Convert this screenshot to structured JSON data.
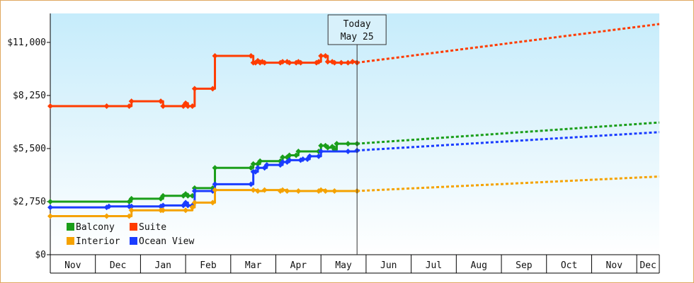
{
  "chart_data": {
    "type": "line",
    "title": "",
    "xlabel": "",
    "ylabel": "",
    "ylim": [
      0,
      12500
    ],
    "yticks": [
      {
        "value": 0,
        "label": "$0"
      },
      {
        "value": 2750,
        "label": "$2,750"
      },
      {
        "value": 5500,
        "label": "$5,500"
      },
      {
        "value": 8250,
        "label": "$8,250"
      },
      {
        "value": 11000,
        "label": "$11,000"
      }
    ],
    "x_axis": {
      "start": 0,
      "end": 13.5,
      "months": [
        "Nov",
        "Dec",
        "Jan",
        "Feb",
        "Mar",
        "Apr",
        "May",
        "Jun",
        "Jul",
        "Aug",
        "Sep",
        "Oct",
        "Nov",
        "Dec"
      ]
    },
    "today_marker": {
      "line1": "Today",
      "line2": "May 25",
      "x": 6.8
    },
    "grid": false,
    "legend_position": "bottom-left",
    "series": [
      {
        "name": "Suite",
        "color": "#ff3c00",
        "points": [
          [
            0.0,
            7700
          ],
          [
            1.25,
            7700
          ],
          [
            1.75,
            7700
          ],
          [
            1.8,
            7950
          ],
          [
            2.45,
            7950
          ],
          [
            2.5,
            7700
          ],
          [
            2.95,
            7700
          ],
          [
            3.0,
            7850
          ],
          [
            3.05,
            7700
          ],
          [
            3.15,
            7700
          ],
          [
            3.2,
            8600
          ],
          [
            3.6,
            8600
          ],
          [
            3.65,
            10300
          ],
          [
            4.45,
            10300
          ],
          [
            4.5,
            9950
          ],
          [
            4.55,
            9950
          ],
          [
            4.6,
            10050
          ],
          [
            4.65,
            9950
          ],
          [
            4.7,
            10000
          ],
          [
            4.75,
            9950
          ],
          [
            5.1,
            9950
          ],
          [
            5.15,
            10000
          ],
          [
            5.25,
            10000
          ],
          [
            5.3,
            9950
          ],
          [
            5.45,
            9950
          ],
          [
            5.5,
            10000
          ],
          [
            5.55,
            9950
          ],
          [
            5.9,
            9950
          ],
          [
            5.95,
            10000
          ],
          [
            6.0,
            10300
          ],
          [
            6.1,
            10300
          ],
          [
            6.15,
            10000
          ],
          [
            6.25,
            10000
          ],
          [
            6.3,
            9950
          ],
          [
            6.45,
            9950
          ],
          [
            6.6,
            9950
          ],
          [
            6.7,
            10000
          ],
          [
            6.8,
            9950
          ]
        ],
        "forecast": [
          [
            6.8,
            9950
          ],
          [
            13.5,
            11950
          ]
        ]
      },
      {
        "name": "Balcony",
        "color": "#1a9e1a",
        "points": [
          [
            0.0,
            2750
          ],
          [
            1.75,
            2750
          ],
          [
            1.8,
            2900
          ],
          [
            2.45,
            2900
          ],
          [
            2.5,
            3050
          ],
          [
            2.95,
            3050
          ],
          [
            3.0,
            3150
          ],
          [
            3.05,
            3050
          ],
          [
            3.15,
            3050
          ],
          [
            3.2,
            3450
          ],
          [
            3.6,
            3450
          ],
          [
            3.65,
            4500
          ],
          [
            4.45,
            4500
          ],
          [
            4.5,
            4700
          ],
          [
            4.6,
            4700
          ],
          [
            4.65,
            4850
          ],
          [
            5.1,
            4850
          ],
          [
            5.15,
            5050
          ],
          [
            5.25,
            5050
          ],
          [
            5.3,
            5150
          ],
          [
            5.45,
            5150
          ],
          [
            5.5,
            5350
          ],
          [
            5.95,
            5350
          ],
          [
            6.0,
            5650
          ],
          [
            6.1,
            5650
          ],
          [
            6.15,
            5550
          ],
          [
            6.25,
            5600
          ],
          [
            6.3,
            5450
          ],
          [
            6.35,
            5750
          ],
          [
            6.6,
            5750
          ],
          [
            6.8,
            5750
          ]
        ],
        "forecast": [
          [
            6.8,
            5750
          ],
          [
            13.5,
            6850
          ]
        ]
      },
      {
        "name": "Ocean View",
        "color": "#1a3cff",
        "points": [
          [
            0.0,
            2450
          ],
          [
            1.25,
            2450
          ],
          [
            1.3,
            2500
          ],
          [
            1.75,
            2500
          ],
          [
            1.8,
            2500
          ],
          [
            2.45,
            2500
          ],
          [
            2.5,
            2550
          ],
          [
            2.95,
            2550
          ],
          [
            3.0,
            2700
          ],
          [
            3.05,
            2550
          ],
          [
            3.15,
            2550
          ],
          [
            3.2,
            3300
          ],
          [
            3.6,
            3300
          ],
          [
            3.65,
            3650
          ],
          [
            4.45,
            3650
          ],
          [
            4.5,
            4300
          ],
          [
            4.55,
            4300
          ],
          [
            4.6,
            4500
          ],
          [
            4.75,
            4500
          ],
          [
            4.8,
            4650
          ],
          [
            5.1,
            4650
          ],
          [
            5.15,
            4800
          ],
          [
            5.25,
            4800
          ],
          [
            5.3,
            4900
          ],
          [
            5.55,
            4900
          ],
          [
            5.6,
            4950
          ],
          [
            5.7,
            4950
          ],
          [
            5.75,
            5100
          ],
          [
            5.95,
            5100
          ],
          [
            6.0,
            5350
          ],
          [
            6.6,
            5350
          ],
          [
            6.8,
            5400
          ]
        ],
        "forecast": [
          [
            6.8,
            5400
          ],
          [
            13.5,
            6350
          ]
        ]
      },
      {
        "name": "Interior",
        "color": "#f5a200",
        "points": [
          [
            0.0,
            2000
          ],
          [
            1.25,
            2000
          ],
          [
            1.75,
            2000
          ],
          [
            1.8,
            2300
          ],
          [
            2.45,
            2300
          ],
          [
            2.5,
            2300
          ],
          [
            3.0,
            2300
          ],
          [
            3.15,
            2450
          ],
          [
            3.2,
            2700
          ],
          [
            3.6,
            2700
          ],
          [
            3.65,
            3350
          ],
          [
            4.5,
            3350
          ],
          [
            4.6,
            3300
          ],
          [
            4.75,
            3350
          ],
          [
            5.1,
            3300
          ],
          [
            5.15,
            3350
          ],
          [
            5.25,
            3300
          ],
          [
            5.5,
            3300
          ],
          [
            5.95,
            3300
          ],
          [
            6.0,
            3350
          ],
          [
            6.1,
            3300
          ],
          [
            6.3,
            3300
          ],
          [
            6.8,
            3300
          ]
        ],
        "forecast": [
          [
            6.8,
            3300
          ],
          [
            13.5,
            4050
          ]
        ]
      }
    ],
    "legend": [
      {
        "label": "Balcony",
        "color": "#1a9e1a"
      },
      {
        "label": "Suite",
        "color": "#ff3c00"
      },
      {
        "label": "Interior",
        "color": "#f5a200"
      },
      {
        "label": "Ocean View",
        "color": "#1a3cff"
      }
    ]
  }
}
